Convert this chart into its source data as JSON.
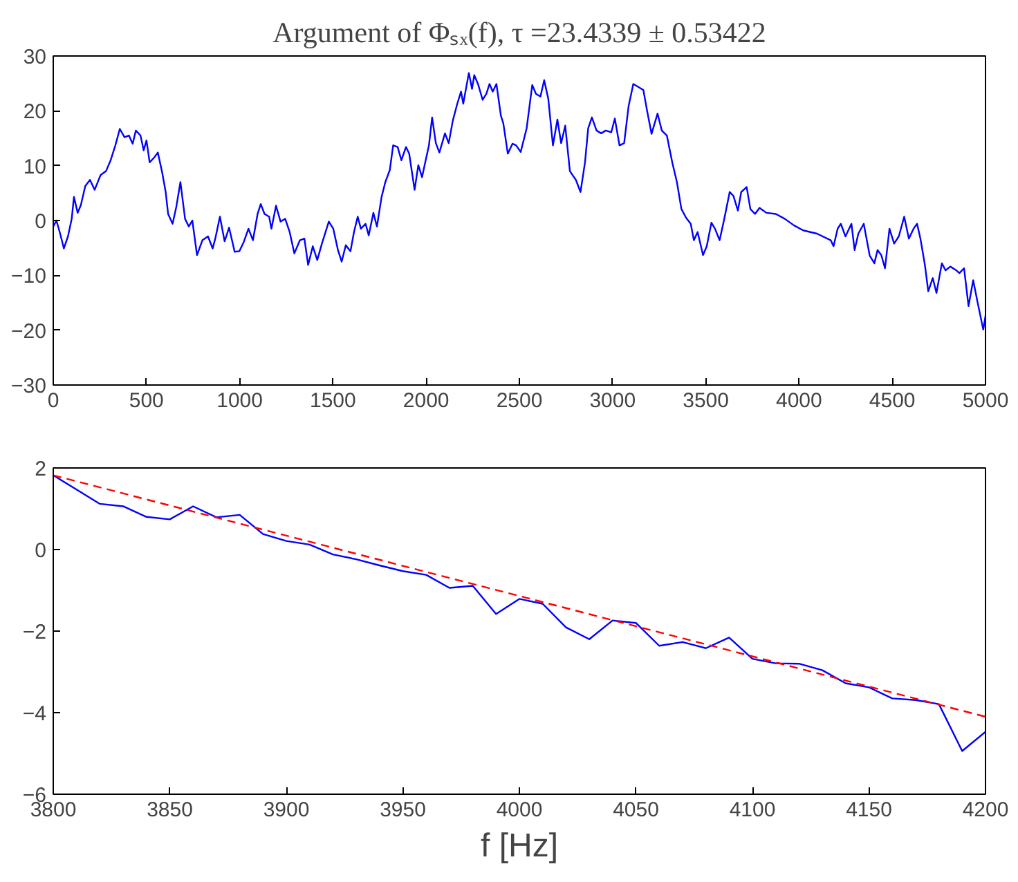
{
  "chart_data": [
    {
      "type": "line",
      "title": "Argument of Φₛₓ(f), τ =23.4339 ± 0.53422",
      "xlim": [
        0,
        5000
      ],
      "ylim": [
        -30,
        30
      ],
      "xticks": [
        0,
        500,
        1000,
        1500,
        2000,
        2500,
        3000,
        3500,
        4000,
        4500,
        5000
      ],
      "yticks": [
        -30,
        -20,
        -10,
        0,
        10,
        20,
        30
      ],
      "grid": false,
      "series": [
        {
          "color": "#0000ff",
          "x": [
            0,
            17,
            37,
            57,
            79,
            99,
            111,
            131,
            148,
            172,
            197,
            222,
            254,
            283,
            308,
            333,
            357,
            382,
            406,
            426,
            443,
            468,
            485,
            500,
            517,
            542,
            561,
            584,
            603,
            616,
            640,
            660,
            682,
            707,
            727,
            746,
            771,
            800,
            830,
            855,
            869,
            894,
            919,
            943,
            973,
            998,
            1022,
            1047,
            1071,
            1096,
            1113,
            1133,
            1158,
            1170,
            1195,
            1219,
            1244,
            1268,
            1293,
            1323,
            1347,
            1367,
            1392,
            1416,
            1441,
            1478,
            1502,
            1527,
            1547,
            1569,
            1594,
            1613,
            1633,
            1650,
            1675,
            1692,
            1717,
            1736,
            1761,
            1781,
            1805,
            1823,
            1847,
            1867,
            1892,
            1909,
            1938,
            1958,
            1978,
            1995,
            2015,
            2032,
            2052,
            2071,
            2101,
            2121,
            2143,
            2167,
            2187,
            2199,
            2229,
            2246,
            2258,
            2278,
            2303,
            2323,
            2340,
            2357,
            2377,
            2401,
            2414,
            2438,
            2463,
            2483,
            2507,
            2539,
            2569,
            2589,
            2613,
            2633,
            2655,
            2680,
            2704,
            2724,
            2746,
            2771,
            2803,
            2828,
            2852,
            2869,
            2889,
            2914,
            2939,
            2963,
            2993,
            3012,
            3037,
            3062,
            3086,
            3111,
            3136,
            3165,
            3185,
            3209,
            3241,
            3264,
            3291,
            3320,
            3345,
            3369,
            3394,
            3419,
            3436,
            3456,
            3485,
            3505,
            3530,
            3549,
            3574,
            3599,
            3628,
            3648,
            3672,
            3690,
            3719,
            3739,
            3764,
            3788,
            3825,
            3875,
            3924,
            3973,
            4022,
            4096,
            4170,
            4185,
            4207,
            4224,
            4249,
            4281,
            4298,
            4318,
            4347,
            4379,
            4404,
            4421,
            4441,
            4461,
            4485,
            4510,
            4535,
            4564,
            4589,
            4614,
            4633,
            4651,
            4675,
            4693,
            4717,
            4737,
            4766,
            4786,
            4811,
            4840,
            4860,
            4885,
            4909,
            4934,
            4958,
            4988,
            5000
          ],
          "values": [
            -1.1,
            0,
            -2.4,
            -5.1,
            -2.9,
            0.3,
            4.3,
            1.4,
            2.8,
            6.3,
            7.4,
            5.6,
            8.3,
            9.0,
            11,
            13.7,
            16.7,
            15.2,
            15.5,
            14,
            16.4,
            15.5,
            12.8,
            14.6,
            10.6,
            11.5,
            12.4,
            8.8,
            5.2,
            1.2,
            -0.6,
            2.5,
            7,
            0.3,
            -1.1,
            0,
            -6.3,
            -3.6,
            -2.9,
            -5.1,
            -3.3,
            0.7,
            -3.8,
            -1.3,
            -5.7,
            -5.6,
            -3.9,
            -1.5,
            -3.6,
            1.2,
            3.0,
            1.2,
            0.7,
            -1.5,
            2.7,
            -0.2,
            0.3,
            -2.1,
            -6,
            -3.6,
            -3.3,
            -8.1,
            -4.7,
            -7.2,
            -4.2,
            -0.2,
            -1.5,
            -5.4,
            -7.5,
            -4.5,
            -5.6,
            -2.1,
            0.7,
            -1.5,
            -0.6,
            -2.7,
            1.4,
            -1.1,
            4.3,
            7.0,
            9.2,
            13.7,
            13.4,
            11,
            13.4,
            12.2,
            5.6,
            10.1,
            7.9,
            10.6,
            13.7,
            18.8,
            14.1,
            12.4,
            15.9,
            14.1,
            18.2,
            21.3,
            23.5,
            21.3,
            26.9,
            24,
            26.5,
            24.9,
            22,
            23.1,
            24.9,
            23.5,
            24.9,
            19.1,
            17.7,
            12.2,
            14,
            13.7,
            12.5,
            16.8,
            24.7,
            23.1,
            22.6,
            25.6,
            22.2,
            13.7,
            18.4,
            14.1,
            17.3,
            9,
            7.4,
            5.2,
            10.6,
            16.8,
            18.8,
            16.4,
            15.9,
            16.4,
            16.1,
            18.6,
            13.7,
            14.1,
            20.9,
            24.9,
            24.4,
            23.8,
            20,
            15.8,
            19.5,
            16.4,
            15.5,
            10.6,
            7,
            2.1,
            0.5,
            -0.6,
            -3.6,
            -2.1,
            -6.3,
            -4.7,
            -0.4,
            -1.5,
            -3.6,
            0.3,
            5.2,
            4.5,
            1.8,
            5.2,
            6.1,
            2.1,
            1.2,
            2.3,
            1.4,
            1.2,
            0.3,
            -0.9,
            -1.8,
            -2.4,
            -3.6,
            -4.7,
            -1.5,
            -0.6,
            -2.9,
            -0.6,
            -5.4,
            -2.4,
            -0.6,
            -6.4,
            -7.8,
            -5.4,
            -6.3,
            -8.7,
            -1.5,
            -4.2,
            -2.9,
            0.7,
            -3.3,
            -1.5,
            -0.6,
            -3.3,
            -8.1,
            -12.9,
            -10.5,
            -13.2,
            -7.8,
            -9.1,
            -8.4,
            -9,
            -9.6,
            -8.7,
            -15.6,
            -10.9,
            -15,
            -19.9,
            -17.4
          ]
        }
      ]
    },
    {
      "type": "line",
      "xlabel": "f [Hz]",
      "xlim": [
        3800,
        4200
      ],
      "ylim": [
        -6,
        2
      ],
      "xticks": [
        3800,
        3850,
        3900,
        3950,
        4000,
        4050,
        4100,
        4150,
        4200
      ],
      "yticks": [
        -6,
        -4,
        -2,
        0,
        2
      ],
      "grid": false,
      "series": [
        {
          "color": "#0000ff",
          "x": [
            3800,
            3810,
            3820,
            3830,
            3840,
            3850,
            3860,
            3870,
            3880,
            3890,
            3900,
            3910,
            3920,
            3930,
            3940,
            3950,
            3960,
            3970,
            3980,
            3990,
            4000,
            4010,
            4020,
            4030,
            4040,
            4050,
            4060,
            4070,
            4080,
            4090,
            4100,
            4110,
            4120,
            4130,
            4140,
            4150,
            4160,
            4170,
            4180,
            4190,
            4200
          ],
          "values": [
            1.82,
            1.47,
            1.12,
            1.06,
            0.8,
            0.74,
            1.06,
            0.79,
            0.85,
            0.38,
            0.21,
            0.12,
            -0.12,
            -0.24,
            -0.39,
            -0.53,
            -0.62,
            -0.94,
            -0.89,
            -1.58,
            -1.21,
            -1.33,
            -1.91,
            -2.2,
            -1.74,
            -1.8,
            -2.36,
            -2.27,
            -2.42,
            -2.16,
            -2.68,
            -2.79,
            -2.8,
            -2.96,
            -3.28,
            -3.38,
            -3.65,
            -3.69,
            -3.79,
            -4.94,
            -4.47
          ]
        },
        {
          "color": "#ff0000",
          "line_style": "dashed",
          "x": [
            3800,
            4200
          ],
          "values": [
            1.82,
            -4.1
          ]
        }
      ]
    }
  ]
}
